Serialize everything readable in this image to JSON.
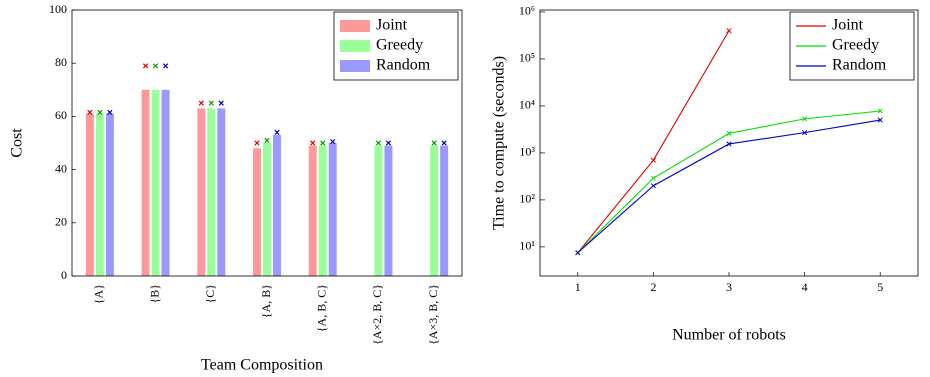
{
  "chart_data": [
    {
      "type": "bar",
      "ylabel": "Cost",
      "xlabel": "Team Composition",
      "categories": [
        "{A}",
        "{B}",
        "{C}",
        "{A, B}",
        "{A, B, C}",
        "{A×2, B, C}",
        "{A×3, B, C}"
      ],
      "series": [
        {
          "name": "Joint",
          "color": "#ff9999",
          "marker_color": "#e00000",
          "values": [
            61,
            70,
            63,
            48,
            49,
            null,
            null
          ],
          "marker_values": [
            61.5,
            79,
            65,
            50,
            50,
            null,
            null
          ]
        },
        {
          "name": "Greedy",
          "color": "#99ff99",
          "marker_color": "#00a000",
          "values": [
            61,
            70,
            63,
            50,
            49,
            49,
            49
          ],
          "marker_values": [
            61.5,
            79,
            65,
            51,
            50,
            50,
            50
          ]
        },
        {
          "name": "Random",
          "color": "#9999ff",
          "marker_color": "#0000c0",
          "values": [
            61,
            70,
            63,
            53,
            50,
            49,
            49
          ],
          "marker_values": [
            61.5,
            79,
            65,
            54,
            50.5,
            50,
            50
          ]
        }
      ],
      "ylim": [
        0,
        100
      ],
      "yticks": [
        0,
        20,
        40,
        60,
        80,
        100
      ],
      "legend": "top-right"
    },
    {
      "type": "line",
      "ylabel": "Time to compute (seconds)",
      "xlabel": "Number of robots",
      "x": [
        1,
        2,
        3,
        4,
        5
      ],
      "series": [
        {
          "name": "Joint",
          "color": "#e00000",
          "values": [
            7.5,
            700,
            400000,
            null,
            null
          ]
        },
        {
          "name": "Greedy",
          "color": "#00e000",
          "values": [
            7.5,
            290,
            2600,
            5300,
            7800
          ]
        },
        {
          "name": "Random",
          "color": "#0000c0",
          "values": [
            7.5,
            200,
            1550,
            2700,
            5000
          ]
        }
      ],
      "xlim": [
        0.5,
        5.5
      ],
      "xticks": [
        1,
        2,
        3,
        4,
        5
      ],
      "ylim": [
        2.4,
        1100000
      ],
      "log_y": true,
      "yticks": [
        {
          "value": 10,
          "label": "10¹"
        },
        {
          "value": 100,
          "label": "10²"
        },
        {
          "value": 1000,
          "label": "10³"
        },
        {
          "value": 10000,
          "label": "10⁴"
        },
        {
          "value": 100000,
          "label": "10⁵"
        },
        {
          "value": 1000000,
          "label": "10⁶"
        }
      ],
      "legend": "top-right"
    }
  ]
}
